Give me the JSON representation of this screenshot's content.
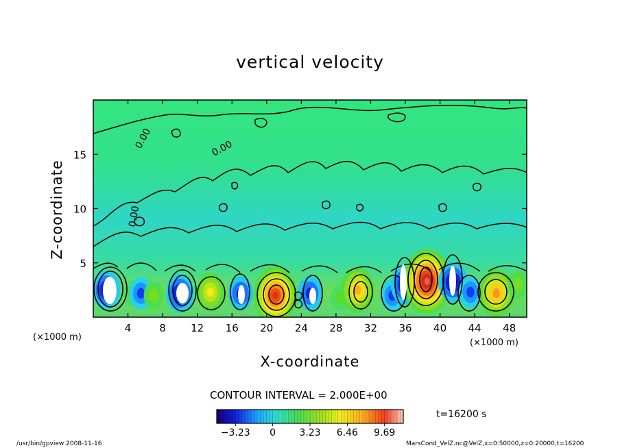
{
  "chart_data": {
    "type": "heatmap",
    "title": "vertical velocity",
    "xlabel": "X-coordinate",
    "ylabel": "Z-coordinate",
    "x_unit": "(×1000 m)",
    "x_ticks": [
      4,
      8,
      12,
      16,
      20,
      24,
      28,
      32,
      36,
      40,
      44,
      48
    ],
    "y_ticks": [
      5,
      10,
      15
    ],
    "xlim": [
      0,
      50
    ],
    "ylim": [
      0,
      20
    ],
    "contour_interval_text": "CONTOUR INTERVAL = 2.000E+00",
    "contour_labels": [
      "0.00",
      "0.00",
      "0.00"
    ],
    "colorbar": {
      "range": [
        -4.85,
        11.31
      ],
      "tick_values": [
        -3.23,
        0,
        3.23,
        6.46,
        9.69
      ],
      "tick_labels": [
        "−3.23",
        "0",
        "3.23",
        "6.46",
        "9.69"
      ]
    },
    "time_label": "t=16200 s",
    "cells": [
      {
        "x": 1.5,
        "z": 2.5,
        "w": -4.5
      },
      {
        "x": 4.5,
        "z": 2.2,
        "w": 1.5
      },
      {
        "x": 5.5,
        "z": 2.2,
        "w": -3.0
      },
      {
        "x": 7.0,
        "z": 2.0,
        "w": 2.0
      },
      {
        "x": 10.0,
        "z": 2.2,
        "w": -4.5
      },
      {
        "x": 13.5,
        "z": 2.3,
        "w": 4.5
      },
      {
        "x": 17.0,
        "z": 2.2,
        "w": -3.5
      },
      {
        "x": 21.0,
        "z": 2.0,
        "w": 9.0
      },
      {
        "x": 25.0,
        "z": 2.2,
        "w": -3.5
      },
      {
        "x": 28.5,
        "z": 1.8,
        "w": 1.5
      },
      {
        "x": 30.5,
        "z": 2.5,
        "w": 6.0
      },
      {
        "x": 34.5,
        "z": 2.0,
        "w": -3.0
      },
      {
        "x": 36.0,
        "z": 3.0,
        "w": -4.8
      },
      {
        "x": 38.5,
        "z": 3.3,
        "w": 10.5
      },
      {
        "x": 41.5,
        "z": 3.2,
        "w": -4.8
      },
      {
        "x": 43.5,
        "z": 2.3,
        "w": -3.0
      },
      {
        "x": 46.5,
        "z": 2.2,
        "w": 6.5
      },
      {
        "x": 49.0,
        "z": 3.0,
        "w": 2.0
      }
    ]
  },
  "footer": {
    "left": "/usr/bin/gpview  2008-11-16",
    "right": "MarsCond_VelZ.nc@VelZ,x=0:50000,z=0:20000,t=16200"
  }
}
